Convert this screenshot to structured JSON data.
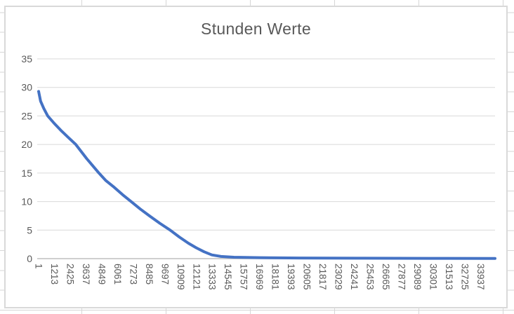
{
  "app": {
    "surface": "excel-worksheet",
    "sheet_gridline_color": "#d6d6d6",
    "chart_frame_border_color": "#d9d9d9",
    "chart_background_color": "#ffffff"
  },
  "chart_data": {
    "type": "line",
    "title": "Stunden Werte",
    "xlabel": "",
    "ylabel": "",
    "ylim": [
      0,
      35
    ],
    "y_ticks": [
      0,
      5,
      10,
      15,
      20,
      25,
      30,
      35
    ],
    "x_tick_labels": [
      "1",
      "1213",
      "2425",
      "3637",
      "4849",
      "6061",
      "7273",
      "8485",
      "9697",
      "10909",
      "12121",
      "13333",
      "14545",
      "15757",
      "16969",
      "18181",
      "19393",
      "20605",
      "21817",
      "23029",
      "24241",
      "25453",
      "26665",
      "27877",
      "29089",
      "30301",
      "31513",
      "32725",
      "33937"
    ],
    "x_max_hours": 35040,
    "grid": true,
    "legend": false,
    "x_labels_rotation_deg": 90,
    "series": [
      {
        "name": "Stunden Werte",
        "color": "#4472C4",
        "points": [
          [
            1,
            29.3
          ],
          [
            150,
            27.6
          ],
          [
            400,
            26.3
          ],
          [
            700,
            25.0
          ],
          [
            1200,
            23.7
          ],
          [
            1700,
            22.5
          ],
          [
            2300,
            21.2
          ],
          [
            2850,
            20.0
          ],
          [
            3700,
            17.5
          ],
          [
            4630,
            15.0
          ],
          [
            5150,
            13.7
          ],
          [
            5800,
            12.5
          ],
          [
            6450,
            11.2
          ],
          [
            7100,
            10.0
          ],
          [
            7800,
            8.7
          ],
          [
            8500,
            7.5
          ],
          [
            9300,
            6.2
          ],
          [
            10100,
            5.0
          ],
          [
            10800,
            3.8
          ],
          [
            11500,
            2.7
          ],
          [
            12100,
            1.9
          ],
          [
            12700,
            1.2
          ],
          [
            13300,
            0.65
          ],
          [
            14000,
            0.38
          ],
          [
            15000,
            0.25
          ],
          [
            17000,
            0.17
          ],
          [
            20000,
            0.11
          ],
          [
            25000,
            0.07
          ],
          [
            30000,
            0.05
          ],
          [
            35040,
            0.03
          ]
        ]
      }
    ],
    "style": {
      "gridline_color": "#d9d9d9",
      "axis_line_color": "#bfbfbf",
      "tick_label_color": "#595959",
      "title_color": "#595959"
    }
  }
}
